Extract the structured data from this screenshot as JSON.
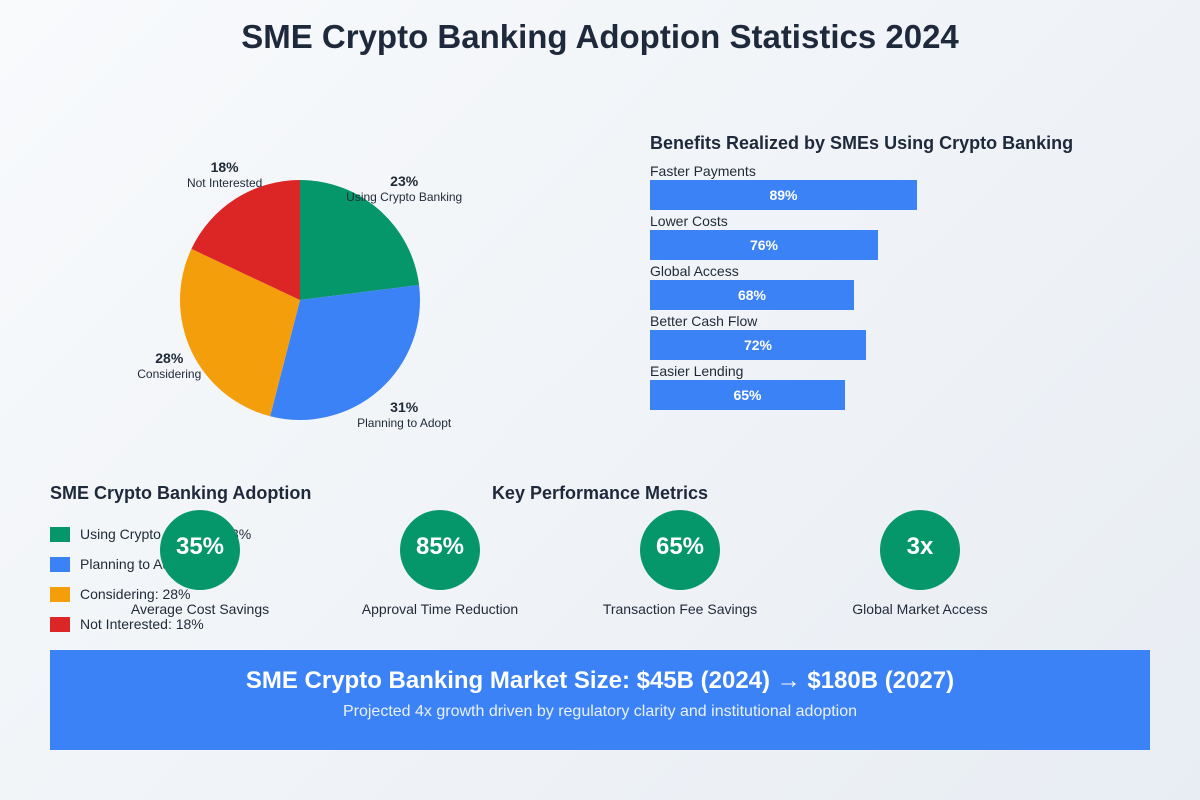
{
  "title": "SME Crypto Banking Adoption Statistics 2024",
  "chart_data": [
    {
      "type": "pie",
      "slices": [
        {
          "label": "Using Crypto Banking",
          "value": 23,
          "display": "23%",
          "color": "#059669"
        },
        {
          "label": "Planning to Adopt",
          "value": 31,
          "display": "31%",
          "color": "#3b82f6"
        },
        {
          "label": "Considering",
          "value": 28,
          "display": "28%",
          "color": "#f59e0b"
        },
        {
          "label": "Not Interested",
          "value": 18,
          "display": "18%",
          "color": "#dc2626"
        }
      ]
    },
    {
      "type": "bar",
      "orientation": "horizontal",
      "title": "Benefits Realized by SMEs Using Crypto Banking",
      "categories": [
        "Faster Payments",
        "Lower Costs",
        "Global Access",
        "Better Cash Flow",
        "Easier Lending"
      ],
      "values": [
        89,
        76,
        68,
        72,
        65
      ],
      "value_labels": [
        "89%",
        "76%",
        "68%",
        "72%",
        "65%"
      ],
      "xlim": [
        0,
        100
      ],
      "color": "#3b82f6"
    }
  ],
  "legend": {
    "title": "SME Crypto Banking Adoption",
    "items": [
      {
        "text": "Using Crypto Banking: 23%",
        "color": "#059669"
      },
      {
        "text": "Planning to Adopt: 31%",
        "color": "#3b82f6"
      },
      {
        "text": "Considering: 28%",
        "color": "#f59e0b"
      },
      {
        "text": "Not Interested: 18%",
        "color": "#dc2626"
      }
    ]
  },
  "kpis": {
    "title": "Key Performance Metrics",
    "items": [
      {
        "value": "35%",
        "label": "Average Cost Savings"
      },
      {
        "value": "85%",
        "label": "Approval Time Reduction"
      },
      {
        "value": "65%",
        "label": "Transaction Fee Savings"
      },
      {
        "value": "3x",
        "label": "Global Market Access"
      }
    ],
    "color": "#059669"
  },
  "banner": {
    "headline": "SME Crypto Banking Market Size: $45B (2024) → $180B (2027)",
    "subtext": "Projected 4x growth driven by regulatory clarity and institutional adoption",
    "color": "#3b82f6"
  }
}
